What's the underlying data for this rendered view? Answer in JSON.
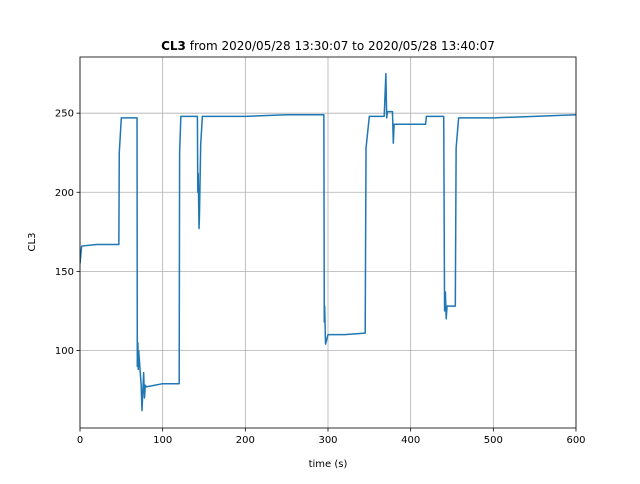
{
  "chart_data": {
    "type": "line",
    "title_parts": [
      "CL3",
      "from 2020/05/28 13:30:07 to 2020/05/28 13:40:07"
    ],
    "x_label": "time (s)",
    "y_label": "CL3",
    "xlim": [
      0,
      600
    ],
    "ylim": [
      51,
      285.5
    ],
    "xticks": [
      0,
      100,
      200,
      300,
      400,
      500,
      600
    ],
    "yticks": [
      100,
      150,
      200,
      250
    ],
    "grid": true,
    "x": [
      0,
      2,
      20,
      47,
      47.5,
      50,
      69,
      69.3,
      70,
      70.5,
      71,
      74,
      75,
      77,
      78,
      79,
      80,
      100,
      120,
      120.5,
      122,
      142,
      142.5,
      143,
      144,
      144.5,
      146,
      148,
      150,
      200,
      250,
      295,
      295.5,
      296,
      297,
      300,
      320,
      345,
      346,
      350,
      368,
      370,
      371,
      372,
      378,
      379,
      380,
      400,
      418,
      419,
      440,
      441,
      442,
      443,
      444,
      446,
      454,
      455,
      458,
      500,
      550,
      600
    ],
    "series": [
      {
        "name": "CL3",
        "color": "#1f77b4",
        "values": [
          155,
          166,
          167,
          167,
          225,
          247,
          247,
          90,
          105,
          88,
          100,
          78,
          62,
          86,
          70,
          78,
          77,
          79,
          79,
          225,
          248,
          248,
          200,
          212,
          177,
          185,
          230,
          248,
          248,
          248,
          249,
          249,
          118,
          128,
          104,
          110,
          110,
          111,
          228,
          248,
          248,
          275,
          247,
          251,
          251,
          231,
          243,
          243,
          243,
          248,
          248,
          125,
          137,
          120,
          128,
          128,
          128,
          228,
          247,
          247,
          248,
          249
        ]
      }
    ]
  }
}
